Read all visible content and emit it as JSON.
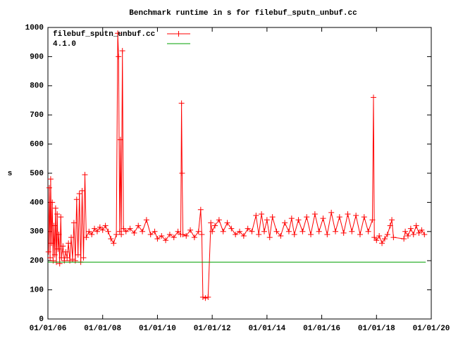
{
  "chart_data": {
    "type": "line",
    "title": "Benchmark runtime in s for filebuf_sputn_unbuf.cc",
    "y_label": "s",
    "xlim": [
      2006,
      2020
    ],
    "xticks": [
      {
        "value": 2006,
        "label": "01/01/06"
      },
      {
        "value": 2008,
        "label": "01/01/08"
      },
      {
        "value": 2010,
        "label": "01/01/10"
      },
      {
        "value": 2012,
        "label": "01/01/12"
      },
      {
        "value": 2014,
        "label": "01/01/14"
      },
      {
        "value": 2016,
        "label": "01/01/16"
      },
      {
        "value": 2018,
        "label": "01/01/18"
      },
      {
        "value": 2020,
        "label": "01/01/20"
      }
    ],
    "ylim": [
      0,
      1000
    ],
    "yticks": [
      0,
      100,
      200,
      300,
      400,
      500,
      600,
      700,
      800,
      900,
      1000
    ],
    "legend": "top-left",
    "series": [
      {
        "name": "filebuf_sputn_unbuf.cc",
        "color": "#ff0000",
        "markers": true,
        "x": [
          2006.02,
          2006.05,
          2006.08,
          2006.1,
          2006.13,
          2006.16,
          2006.19,
          2006.22,
          2006.25,
          2006.28,
          2006.31,
          2006.34,
          2006.37,
          2006.4,
          2006.43,
          2006.47,
          2006.5,
          2006.55,
          2006.6,
          2006.65,
          2006.7,
          2006.75,
          2006.8,
          2006.85,
          2006.9,
          2006.95,
          2007.0,
          2007.05,
          2007.1,
          2007.15,
          2007.2,
          2007.25,
          2007.3,
          2007.35,
          2007.4,
          2007.5,
          2007.6,
          2007.7,
          2007.8,
          2007.9,
          2008.0,
          2008.1,
          2008.2,
          2008.3,
          2008.4,
          2008.5,
          2008.55,
          2008.58,
          2008.62,
          2008.65,
          2008.68,
          2008.72,
          2008.76,
          2008.85,
          2009.0,
          2009.15,
          2009.3,
          2009.45,
          2009.6,
          2009.75,
          2009.9,
          2010.0,
          2010.15,
          2010.3,
          2010.45,
          2010.6,
          2010.75,
          2010.85,
          2010.88,
          2010.9,
          2010.93,
          2011.05,
          2011.2,
          2011.35,
          2011.5,
          2011.58,
          2011.62,
          2011.66,
          2011.75,
          2011.85,
          2011.95,
          2012.0,
          2012.1,
          2012.25,
          2012.4,
          2012.55,
          2012.7,
          2012.85,
          2013.0,
          2013.15,
          2013.3,
          2013.45,
          2013.6,
          2013.7,
          2013.8,
          2013.9,
          2014.0,
          2014.1,
          2014.2,
          2014.35,
          2014.5,
          2014.65,
          2014.8,
          2014.9,
          2015.0,
          2015.15,
          2015.3,
          2015.45,
          2015.6,
          2015.75,
          2015.9,
          2016.05,
          2016.2,
          2016.35,
          2016.5,
          2016.65,
          2016.8,
          2016.95,
          2017.1,
          2017.25,
          2017.4,
          2017.55,
          2017.7,
          2017.85,
          2017.89,
          2017.92,
          2018.0,
          2018.1,
          2018.2,
          2018.3,
          2018.4,
          2018.5,
          2018.56,
          2018.62,
          2019.0,
          2019.05,
          2019.15,
          2019.25,
          2019.35,
          2019.45,
          2019.55,
          2019.65,
          2019.75
        ],
        "values": [
          230,
          450,
          210,
          480,
          260,
          400,
          200,
          320,
          220,
          380,
          195,
          360,
          240,
          290,
          190,
          350,
          210,
          250,
          200,
          230,
          210,
          260,
          200,
          280,
          205,
          330,
          200,
          410,
          220,
          430,
          195,
          440,
          210,
          495,
          280,
          300,
          290,
          310,
          300,
          315,
          305,
          320,
          300,
          275,
          260,
          290,
          980,
          900,
          300,
          615,
          290,
          920,
          310,
          300,
          310,
          295,
          320,
          300,
          340,
          290,
          300,
          275,
          285,
          270,
          290,
          280,
          300,
          290,
          740,
          500,
          290,
          285,
          305,
          280,
          300,
          375,
          290,
          75,
          72,
          75,
          330,
          300,
          320,
          340,
          300,
          330,
          310,
          290,
          300,
          285,
          310,
          300,
          355,
          290,
          360,
          300,
          340,
          280,
          350,
          300,
          285,
          330,
          300,
          345,
          290,
          340,
          300,
          350,
          290,
          360,
          300,
          345,
          290,
          365,
          300,
          350,
          295,
          360,
          300,
          355,
          290,
          350,
          300,
          340,
          760,
          280,
          270,
          285,
          260,
          275,
          290,
          320,
          340,
          280,
          275,
          300,
          285,
          310,
          290,
          320,
          295,
          305,
          290
        ]
      },
      {
        "name": "4.1.0",
        "color": "#00a000",
        "markers": false,
        "x": [
          2006.0,
          2019.8
        ],
        "values": [
          195,
          195
        ]
      }
    ]
  }
}
